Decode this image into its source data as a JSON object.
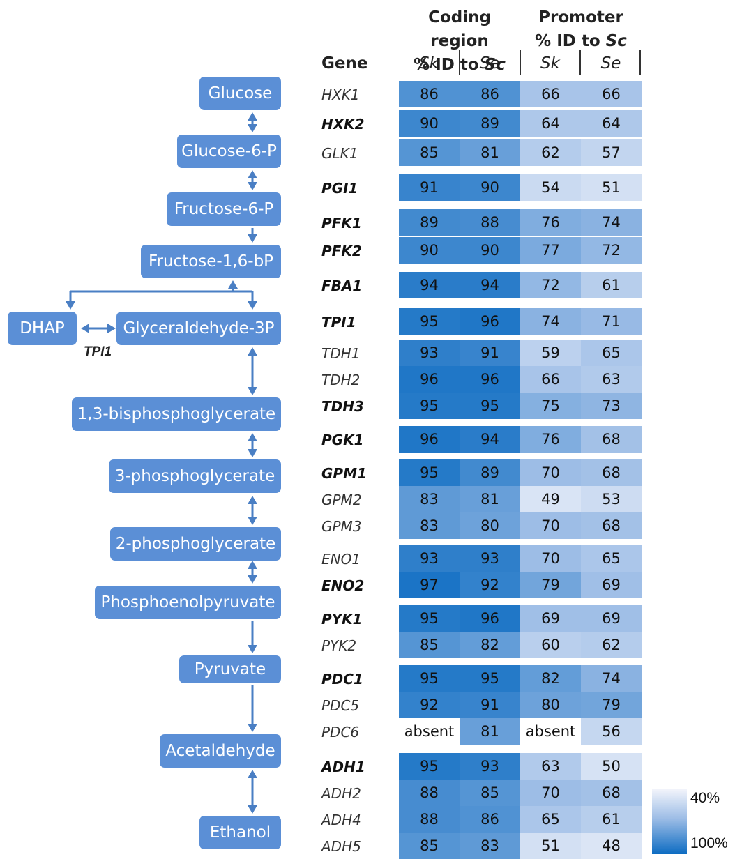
{
  "pathway": {
    "nodes": [
      {
        "key": "glucose",
        "label": "Glucose"
      },
      {
        "key": "g6p",
        "label": "Glucose-6-P"
      },
      {
        "key": "f6p",
        "label": "Fructose-6-P"
      },
      {
        "key": "f16bp",
        "label": "Fructose-1,6-bP"
      },
      {
        "key": "dhap",
        "label": "DHAP"
      },
      {
        "key": "g3p",
        "label": "Glyceraldehyde-3P"
      },
      {
        "key": "bpg13",
        "label": "1,3-bisphosphoglycerate"
      },
      {
        "key": "pg3",
        "label": "3-phosphoglycerate"
      },
      {
        "key": "pg2",
        "label": "2-phosphoglycerate"
      },
      {
        "key": "pep",
        "label": "Phosphoenolpyruvate"
      },
      {
        "key": "pyruvate",
        "label": "Pyruvate"
      },
      {
        "key": "acetaldehyde",
        "label": "Acetaldehyde"
      },
      {
        "key": "ethanol",
        "label": "Ethanol"
      }
    ],
    "tpi_label": "TPI1",
    "node_color": "#5b8fd6",
    "arrow_color": "#4a7fc4"
  },
  "table": {
    "header": {
      "coding_line1": "Coding region",
      "coding_line2_prefix": "% ID to ",
      "coding_line2_italic": "Sc",
      "promoter_line1": "Promoter",
      "promoter_line2_prefix": "% ID to ",
      "promoter_line2_italic": "Sc",
      "gene": "Gene",
      "sk1": "Sk",
      "se1": "Se",
      "sk2": "Sk",
      "se2": "Se"
    },
    "rows": [
      {
        "gene": "HXK1",
        "bold": false,
        "values": [
          86,
          86,
          66,
          66
        ]
      },
      {
        "gene": "HXK2",
        "bold": true,
        "values": [
          90,
          89,
          64,
          64
        ]
      },
      {
        "gene": "GLK1",
        "bold": false,
        "values": [
          85,
          81,
          62,
          57
        ]
      },
      {
        "gene": "PGI1",
        "bold": true,
        "values": [
          91,
          90,
          54,
          51
        ]
      },
      {
        "gene": "PFK1",
        "bold": true,
        "values": [
          89,
          88,
          76,
          74
        ]
      },
      {
        "gene": "PFK2",
        "bold": true,
        "values": [
          90,
          90,
          77,
          72
        ]
      },
      {
        "gene": "FBA1",
        "bold": true,
        "values": [
          94,
          94,
          72,
          61
        ]
      },
      {
        "gene": "TPI1",
        "bold": true,
        "values": [
          95,
          96,
          74,
          71
        ]
      },
      {
        "gene": "TDH1",
        "bold": false,
        "values": [
          93,
          91,
          59,
          65
        ]
      },
      {
        "gene": "TDH2",
        "bold": false,
        "values": [
          96,
          96,
          66,
          63
        ]
      },
      {
        "gene": "TDH3",
        "bold": true,
        "values": [
          95,
          95,
          75,
          73
        ]
      },
      {
        "gene": "PGK1",
        "bold": true,
        "values": [
          96,
          94,
          76,
          68
        ]
      },
      {
        "gene": "GPM1",
        "bold": true,
        "values": [
          95,
          89,
          70,
          68
        ]
      },
      {
        "gene": "GPM2",
        "bold": false,
        "values": [
          83,
          81,
          49,
          53
        ]
      },
      {
        "gene": "GPM3",
        "bold": false,
        "values": [
          83,
          80,
          70,
          68
        ]
      },
      {
        "gene": "ENO1",
        "bold": false,
        "values": [
          93,
          93,
          70,
          65
        ]
      },
      {
        "gene": "ENO2",
        "bold": true,
        "values": [
          97,
          92,
          79,
          69
        ]
      },
      {
        "gene": "PYK1",
        "bold": true,
        "values": [
          95,
          96,
          69,
          69
        ]
      },
      {
        "gene": "PYK2",
        "bold": false,
        "values": [
          85,
          82,
          60,
          62
        ]
      },
      {
        "gene": "PDC1",
        "bold": true,
        "values": [
          95,
          95,
          82,
          74
        ]
      },
      {
        "gene": "PDC5",
        "bold": false,
        "values": [
          92,
          91,
          80,
          79
        ]
      },
      {
        "gene": "PDC6",
        "bold": false,
        "values": [
          "absent",
          81,
          "absent",
          56
        ]
      },
      {
        "gene": "ADH1",
        "bold": true,
        "values": [
          95,
          93,
          63,
          50
        ]
      },
      {
        "gene": "ADH2",
        "bold": false,
        "values": [
          88,
          85,
          70,
          68
        ]
      },
      {
        "gene": "ADH4",
        "bold": false,
        "values": [
          88,
          86,
          65,
          61
        ]
      },
      {
        "gene": "ADH5",
        "bold": false,
        "values": [
          85,
          83,
          51,
          48
        ]
      }
    ],
    "absent_color": "#ffffff"
  },
  "legend": {
    "top_label": "40%",
    "bottom_label": "100%",
    "low_color": "#f2f4fb",
    "high_color": "#0d6cc2"
  }
}
